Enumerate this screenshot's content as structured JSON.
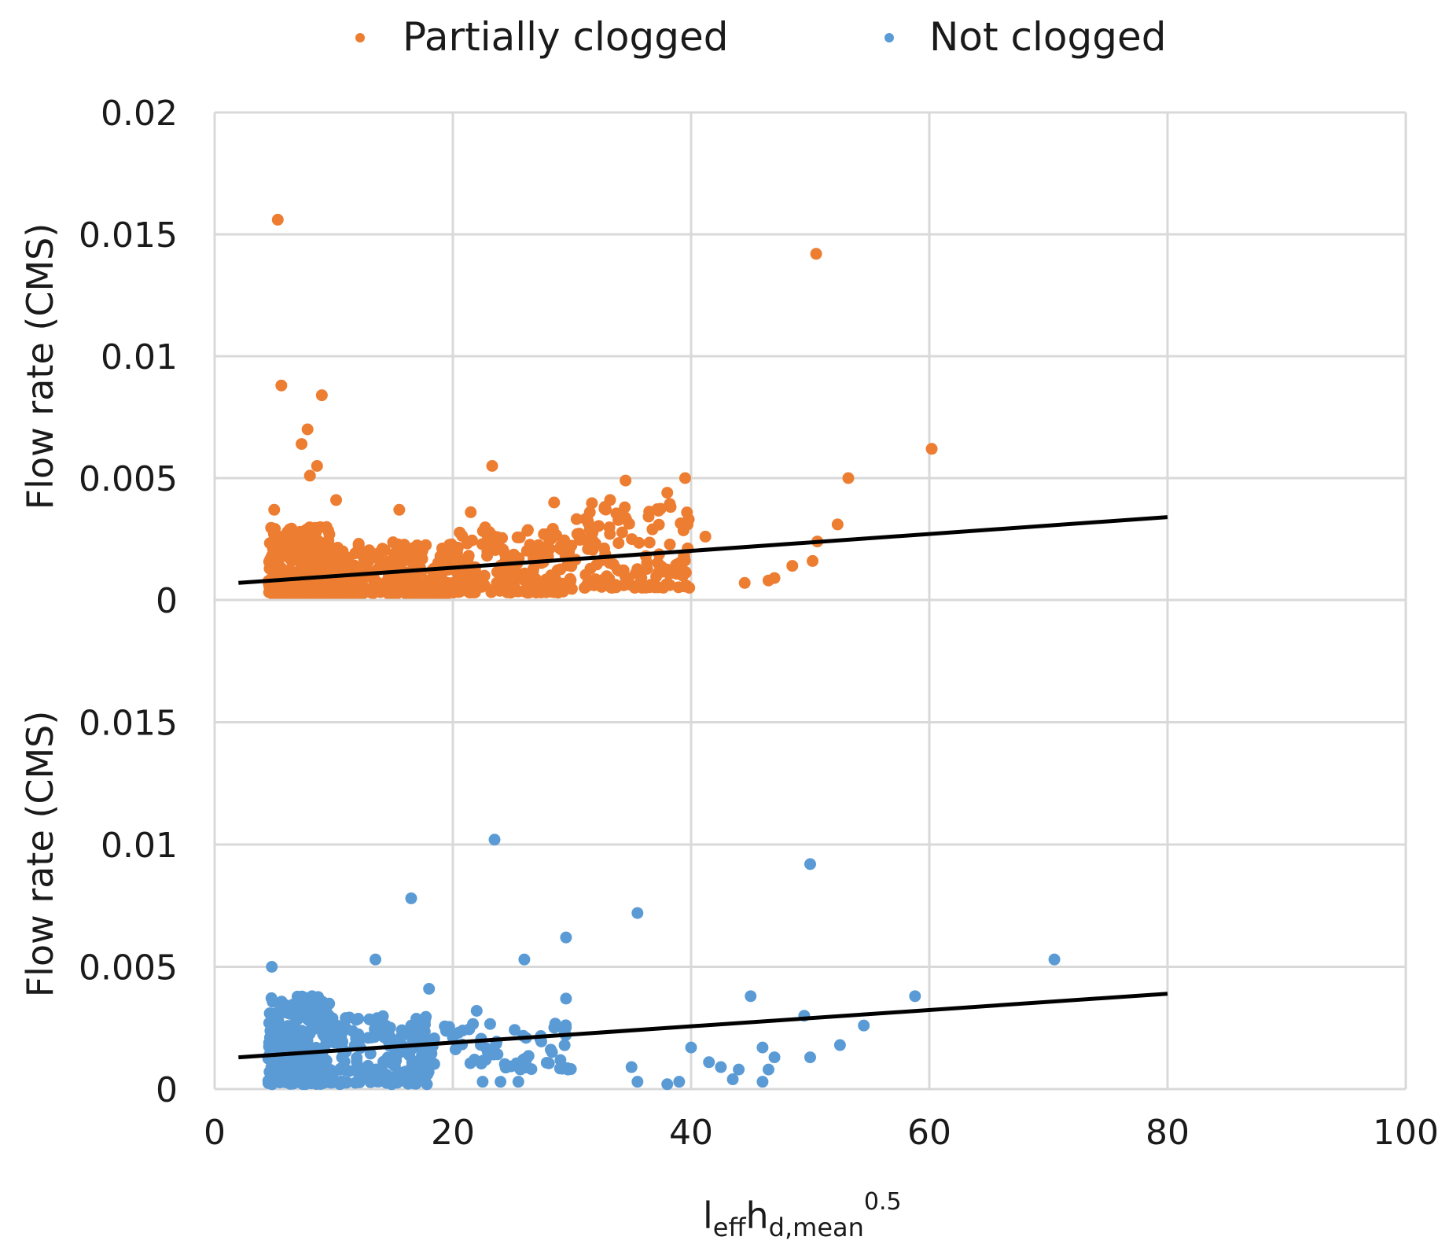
{
  "chart_data": {
    "type": "scatter",
    "legend": {
      "position": "top-center",
      "entries": [
        {
          "name": "Partially clogged",
          "color": "#ED7D31"
        },
        {
          "name": "Not clogged",
          "color": "#5B9BD5"
        }
      ]
    },
    "x_axis": {
      "range": [
        0,
        100
      ],
      "ticks": [
        0,
        20,
        40,
        60,
        80,
        100
      ],
      "tick_labels": [
        "0",
        "20",
        "40",
        "60",
        "80",
        "100"
      ],
      "label_main": "l",
      "label_sub1": "eff",
      "label_main2": "h",
      "label_sub2": "d,mean",
      "label_sup": "0.5"
    },
    "grid": true,
    "panels": [
      {
        "series_name": "Partially clogged",
        "color": "#ED7D31",
        "ylabel": "Flow rate (CMS)",
        "ylim": [
          0,
          0.02
        ],
        "yticks": [
          0,
          0.005,
          0.01,
          0.015,
          0.02
        ],
        "ytick_labels": [
          "0",
          "0.005",
          "0.01",
          "0.015",
          "0.02"
        ],
        "trendline": {
          "x": [
            2,
            80
          ],
          "y": [
            0.0007,
            0.0034
          ]
        },
        "points": [
          [
            5.3,
            0.0156
          ],
          [
            50.5,
            0.0142
          ],
          [
            5.6,
            0.0088
          ],
          [
            9.0,
            0.0084
          ],
          [
            7.8,
            0.007
          ],
          [
            7.3,
            0.0064
          ],
          [
            8.6,
            0.0055
          ],
          [
            8.0,
            0.0051
          ],
          [
            23.3,
            0.0055
          ],
          [
            60.2,
            0.0062
          ],
          [
            53.2,
            0.005
          ],
          [
            39.5,
            0.005
          ],
          [
            10.2,
            0.0041
          ],
          [
            15.5,
            0.0037
          ],
          [
            5.0,
            0.0037
          ],
          [
            34.5,
            0.0049
          ],
          [
            38.0,
            0.0044
          ],
          [
            44.5,
            0.0007
          ],
          [
            46.5,
            0.0008
          ],
          [
            47.0,
            0.0009
          ],
          [
            48.5,
            0.0014
          ],
          [
            50.2,
            0.0016
          ],
          [
            52.3,
            0.0031
          ],
          [
            50.6,
            0.0024
          ],
          [
            41.2,
            0.0026
          ],
          [
            36.2,
            0.0018
          ],
          [
            31.5,
            0.0036
          ],
          [
            21.5,
            0.0036
          ],
          [
            28.5,
            0.004
          ],
          [
            33.2,
            0.0041
          ]
        ],
        "cluster": [
          {
            "x": [
              4.5,
              10
            ],
            "y": [
              0.0002,
              0.003
            ],
            "n": 280
          },
          {
            "x": [
              10,
              20
            ],
            "y": [
              0.0002,
              0.0024
            ],
            "n": 260
          },
          {
            "x": [
              20,
              30
            ],
            "y": [
              0.0003,
              0.003
            ],
            "n": 200
          },
          {
            "x": [
              30,
              40
            ],
            "y": [
              0.0005,
              0.004
            ],
            "n": 130
          }
        ]
      },
      {
        "series_name": "Not clogged",
        "color": "#5B9BD5",
        "ylabel": "Flow rate (CMS)",
        "ylim": [
          0,
          0.02
        ],
        "yticks": [
          0,
          0.005,
          0.01,
          0.015
        ],
        "ytick_labels": [
          "0",
          "0.005",
          "0.01",
          "0.015"
        ],
        "trendline": {
          "x": [
            2,
            80
          ],
          "y": [
            0.0013,
            0.0039
          ]
        },
        "points": [
          [
            23.5,
            0.0102
          ],
          [
            50.0,
            0.0092
          ],
          [
            16.5,
            0.0078
          ],
          [
            35.5,
            0.0072
          ],
          [
            29.5,
            0.0062
          ],
          [
            70.5,
            0.0053
          ],
          [
            13.5,
            0.0053
          ],
          [
            26.0,
            0.0053
          ],
          [
            4.8,
            0.005
          ],
          [
            45.0,
            0.0038
          ],
          [
            58.8,
            0.0038
          ],
          [
            29.5,
            0.0037
          ],
          [
            18.0,
            0.0041
          ],
          [
            54.5,
            0.0026
          ],
          [
            49.5,
            0.003
          ],
          [
            52.5,
            0.0018
          ],
          [
            40.0,
            0.0017
          ],
          [
            41.5,
            0.0011
          ],
          [
            42.5,
            0.0009
          ],
          [
            44.0,
            0.0008
          ],
          [
            46.0,
            0.0017
          ],
          [
            47.0,
            0.0013
          ],
          [
            50.0,
            0.0013
          ],
          [
            35.0,
            0.0009
          ],
          [
            35.5,
            0.0003
          ],
          [
            38.0,
            0.0002
          ],
          [
            39.0,
            0.0003
          ],
          [
            43.5,
            0.0004
          ],
          [
            46.0,
            0.0003
          ],
          [
            46.5,
            0.0008
          ],
          [
            22.0,
            0.0032
          ],
          [
            24.0,
            0.0003
          ],
          [
            25.5,
            0.0003
          ],
          [
            22.5,
            0.0003
          ]
        ],
        "cluster": [
          {
            "x": [
              4.5,
              10
            ],
            "y": [
              0.0002,
              0.0038
            ],
            "n": 260
          },
          {
            "x": [
              10,
              18
            ],
            "y": [
              0.0002,
              0.003
            ],
            "n": 170
          },
          {
            "x": [
              18,
              30
            ],
            "y": [
              0.0008,
              0.0028
            ],
            "n": 70
          }
        ]
      }
    ]
  }
}
